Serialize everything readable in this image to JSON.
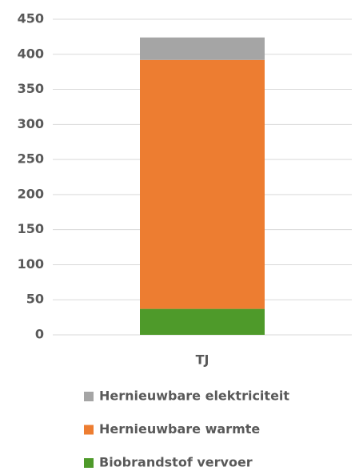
{
  "chart_data": {
    "type": "stacked_bar",
    "categories": [
      "TJ"
    ],
    "series": [
      {
        "name": "Biobrandstof vervoer",
        "color": "#4e9a2a",
        "values": [
          37
        ]
      },
      {
        "name": "Hernieuwbare warmte",
        "color": "#ed7d31",
        "values": [
          355
        ]
      },
      {
        "name": "Hernieuwbare elektriciteit",
        "color": "#a5a5a5",
        "values": [
          32
        ]
      }
    ],
    "ylim": [
      0,
      450
    ],
    "yticks": [
      0,
      50,
      100,
      150,
      200,
      250,
      300,
      350,
      400,
      450
    ],
    "grid": true,
    "legend": "bottom"
  }
}
